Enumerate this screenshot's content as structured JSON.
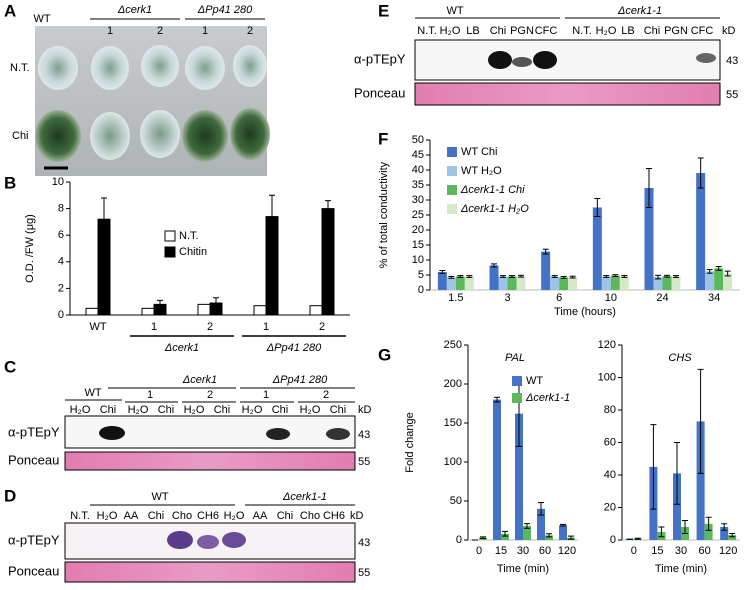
{
  "panel_letters": [
    "A",
    "B",
    "C",
    "D",
    "E",
    "F",
    "G"
  ],
  "panel_a": {
    "wt": "WT",
    "mutant1": "Δcerk1",
    "mutant2": "ΔPp41 280",
    "lines": [
      "1",
      "2",
      "1",
      "2"
    ],
    "rows": [
      "N.T.",
      "Chi"
    ]
  },
  "panel_c": {
    "wt": "WT",
    "mutant1": "Δcerk1",
    "mutant2": "ΔPp41 280",
    "lines": [
      "1",
      "2",
      "1",
      "2"
    ],
    "lanes": [
      "H₂O",
      "Chi",
      "H₂O",
      "Chi",
      "H₂O",
      "Chi",
      "H₂O",
      "Chi",
      "H₂O",
      "Chi"
    ],
    "kd": "kD",
    "antibody": "α-pTEpY",
    "stain": "Ponceau",
    "sizes": [
      "43",
      "55"
    ]
  },
  "panel_d": {
    "wt": "WT",
    "mutant": "Δcerk1-1",
    "lanes": [
      "N.T.",
      "H₂O",
      "AA",
      "Chi",
      "Cho",
      "CH6",
      "H₂O",
      "AA",
      "Chi",
      "Cho",
      "CH6"
    ],
    "kd": "kD",
    "antibody": "α-pTEpY",
    "stain": "Ponceau",
    "sizes": [
      "43",
      "55"
    ]
  },
  "panel_e": {
    "wt": "WT",
    "mutant": "Δcerk1-1",
    "lanes": [
      "N.T.",
      "H₂O",
      "LB",
      "Chi",
      "PGN",
      "CFC",
      "N.T.",
      "H₂O",
      "LB",
      "Chi",
      "PGN",
      "CFC"
    ],
    "kd": "kD",
    "antibody": "α-pTEpY",
    "stain": "Ponceau",
    "sizes": [
      "43",
      "55"
    ]
  },
  "chart_data": [
    {
      "type": "bar",
      "ylabel": "O.D. /FW (μg)",
      "categories": [
        "WT",
        "1",
        "2",
        "1",
        "2"
      ],
      "groups": [
        "Δcerk1",
        "ΔPp41 280"
      ],
      "series": [
        {
          "name": "N.T.",
          "color": "#ffffff",
          "values": [
            0.5,
            0.5,
            0.8,
            0.7,
            0.7
          ]
        },
        {
          "name": "Chitin",
          "color": "#000000",
          "values": [
            7.2,
            0.8,
            0.9,
            7.4,
            8.0
          ],
          "errors": [
            1.6,
            0.3,
            0.4,
            1.6,
            0.6
          ]
        }
      ],
      "ylim": [
        0,
        10
      ],
      "yticks": [
        0,
        2,
        4,
        6,
        8,
        10
      ]
    },
    {
      "type": "bar",
      "ylabel": "% of total conductivity",
      "xlabel": "Time (hours)",
      "categories": [
        "1.5",
        "3",
        "6",
        "10",
        "24",
        "34"
      ],
      "series": [
        {
          "name": "WT Chi",
          "color": "#4472c4",
          "values": [
            6,
            8.2,
            12.8,
            27.5,
            34,
            39
          ],
          "errors": [
            0.5,
            0.5,
            0.8,
            3,
            6.5,
            5
          ]
        },
        {
          "name": "WT H₂O",
          "color": "#9dc3e6",
          "values": [
            4.2,
            4.5,
            4.5,
            4.5,
            4.3,
            6.2
          ],
          "errors": [
            0.3,
            0.3,
            0.3,
            0.3,
            0.6,
            0.6
          ]
        },
        {
          "name": "Δcerk1-1 Chi",
          "color": "#5cb85c",
          "values": [
            4.5,
            4.5,
            4.2,
            4.8,
            4.6,
            7.2
          ],
          "errors": [
            0.3,
            0.3,
            0.3,
            0.3,
            0.3,
            0.6
          ]
        },
        {
          "name": "Δcerk1-1 H₂O",
          "color": "#d6e9c6",
          "values": [
            4.5,
            4.6,
            4.3,
            4.5,
            4.5,
            5.5
          ],
          "errors": [
            0.3,
            0.3,
            0.3,
            0.3,
            0.3,
            0.8
          ]
        }
      ],
      "ylim": [
        0,
        50
      ],
      "yticks": [
        0,
        5,
        10,
        15,
        20,
        25,
        30,
        35,
        40,
        45,
        50
      ]
    },
    {
      "type": "bar",
      "title": "PAL",
      "ylabel": "Fold change",
      "xlabel": "Time (min)",
      "categories": [
        "0",
        "15",
        "30",
        "60",
        "120"
      ],
      "series": [
        {
          "name": "WT",
          "color": "#4472c4",
          "values": [
            0,
            180,
            162,
            40,
            19
          ],
          "errors": [
            0,
            3,
            42,
            8,
            1
          ]
        },
        {
          "name": "Δcerk1-1",
          "color": "#5cb85c",
          "values": [
            3,
            8,
            18,
            6,
            3
          ],
          "errors": [
            1,
            3,
            3,
            2,
            2
          ]
        }
      ],
      "ylim": [
        0,
        250
      ],
      "yticks": [
        0,
        50,
        100,
        150,
        200,
        250
      ]
    },
    {
      "type": "bar",
      "title": "CHS",
      "xlabel": "Time (min)",
      "categories": [
        "0",
        "15",
        "30",
        "60",
        "120"
      ],
      "series": [
        {
          "color": "#4472c4",
          "values": [
            0.5,
            45,
            41,
            73,
            8
          ],
          "errors": [
            0,
            26,
            19,
            32,
            2
          ]
        },
        {
          "color": "#5cb85c",
          "values": [
            0.8,
            5,
            8,
            10,
            3
          ],
          "errors": [
            0.3,
            3,
            4,
            4,
            1
          ]
        }
      ],
      "ylim": [
        0,
        120
      ],
      "yticks": [
        0,
        20,
        40,
        60,
        80,
        100,
        120
      ]
    }
  ]
}
